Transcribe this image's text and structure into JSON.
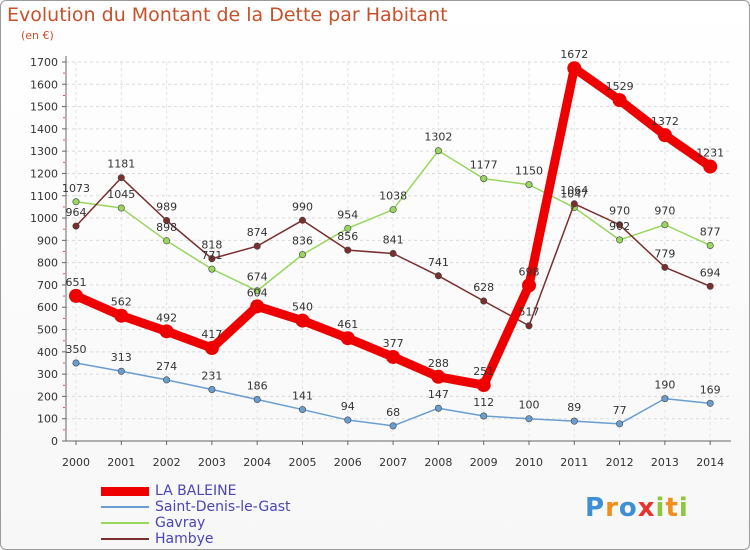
{
  "chart_data": {
    "type": "line",
    "title": "Evolution du Montant de la Dette par Habitant",
    "subtitle": "(en €)",
    "x": [
      "2000",
      "2001",
      "2002",
      "2003",
      "2004",
      "2005",
      "2006",
      "2007",
      "2008",
      "2009",
      "2010",
      "2011",
      "2012",
      "2013",
      "2014"
    ],
    "ylim": [
      0,
      1700
    ],
    "yticks": [
      0,
      100,
      200,
      300,
      400,
      500,
      600,
      700,
      800,
      900,
      1000,
      1100,
      1200,
      1300,
      1400,
      1500,
      1600,
      1700
    ],
    "grid": true,
    "legend_position": "bottom-left",
    "series": [
      {
        "name": "LA BALEINE",
        "color": "#ee0000",
        "values": [
          651,
          562,
          492,
          417,
          604,
          540,
          461,
          377,
          288,
          251,
          698,
          1672,
          1529,
          1372,
          1231
        ],
        "labels": [
          "651",
          "562",
          "492",
          "417",
          "604",
          "540",
          "461",
          "377",
          "288",
          "251",
          "698",
          "1672",
          "1529",
          "1372",
          "1231"
        ]
      },
      {
        "name": "Saint-Denis-le-Gast",
        "color": "#6a9ed0",
        "values": [
          350,
          313,
          274,
          231,
          186,
          141,
          94,
          68,
          147,
          112,
          100,
          89,
          77,
          190,
          169
        ],
        "labels": [
          "350",
          "313",
          "274",
          "231",
          "186",
          "141",
          "94",
          "68",
          "147",
          "112",
          "100",
          "89",
          "77",
          "190",
          "169"
        ]
      },
      {
        "name": "Gavray",
        "color": "#99d65e",
        "values": [
          1073,
          1045,
          898,
          771,
          674,
          836,
          954,
          1038,
          1302,
          1177,
          1150,
          1047,
          902,
          970,
          877
        ],
        "labels": [
          "1073",
          "1045",
          "898",
          "771",
          "674",
          "836",
          "954",
          "1038",
          "1302",
          "1177",
          "1150",
          "1047",
          "902",
          "970",
          "877"
        ]
      },
      {
        "name": "Hambye",
        "color": "#7a2e2e",
        "values": [
          964,
          1181,
          989,
          818,
          874,
          990,
          856,
          841,
          741,
          628,
          517,
          1064,
          970,
          779,
          694
        ],
        "labels": [
          "964",
          "1181",
          "989",
          "818",
          "874",
          "990",
          "856",
          "841",
          "741",
          "628",
          "517",
          "1064",
          "970",
          "779",
          "694"
        ]
      }
    ]
  },
  "logo": {
    "letters": [
      "P",
      "r",
      "o",
      "x",
      "i",
      "t",
      "i"
    ],
    "colors": [
      "#3f8fd6",
      "#f28e1c",
      "#3f8fd6",
      "#e8322e",
      "#8dc63f",
      "#f28e1c",
      "#8dc63f"
    ]
  }
}
